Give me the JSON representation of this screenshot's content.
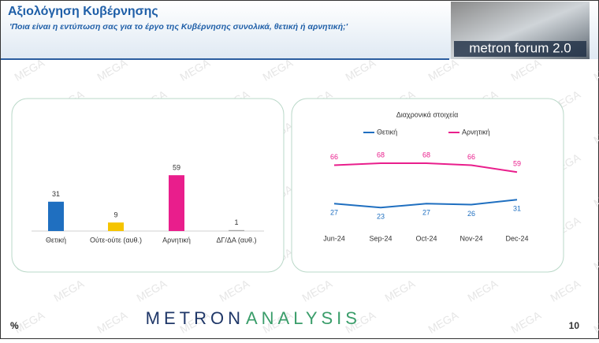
{
  "header": {
    "title": "Αξιολόγηση Κυβέρνησης",
    "subtitle": "'Ποια είναι η εντύπωση σας για το έργο της Κυβέρνησης συνολικά, θετική ή αρνητική;'",
    "logo": "metron forum 2.0"
  },
  "watermark": "MEGA",
  "footer": {
    "brand_1": "METRON",
    "brand_2": "ANALYSIS",
    "unit": "%",
    "page": "10"
  },
  "chart_data": [
    {
      "type": "bar",
      "categories": [
        "Θετική",
        "Ούτε-ούτε (αυθ.)",
        "Αρνητική",
        "ΔΓ/ΔΑ (αυθ.)"
      ],
      "values": [
        31,
        9,
        59,
        1
      ],
      "colors": [
        "#1f6fc0",
        "#f5c400",
        "#e91e8c",
        "#a6a6a6"
      ]
    },
    {
      "type": "line",
      "title": "Διαχρονικά στοιχεία",
      "categories": [
        "Jun-24",
        "Sep-24",
        "Oct-24",
        "Nov-24",
        "Dec-24"
      ],
      "series": [
        {
          "name": "Θετική",
          "color": "#1f6fc0",
          "values": [
            27,
            23,
            27,
            26,
            31
          ]
        },
        {
          "name": "Αρνητική",
          "color": "#e91e8c",
          "values": [
            66,
            68,
            68,
            66,
            59
          ]
        }
      ]
    }
  ]
}
